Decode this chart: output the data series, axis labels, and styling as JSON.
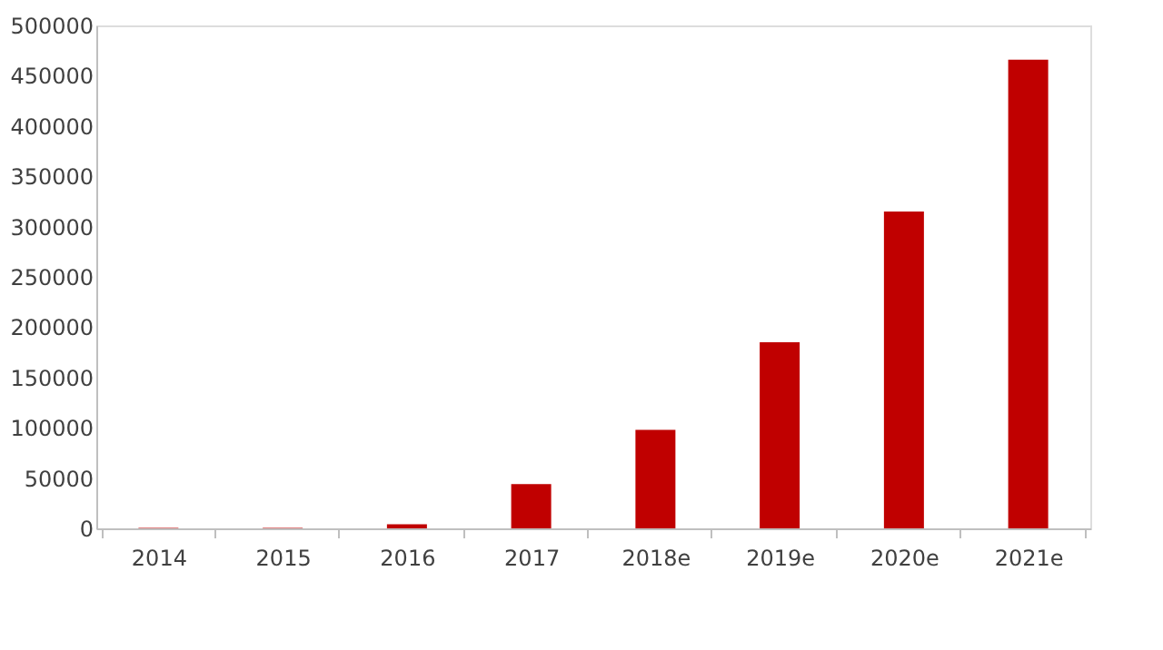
{
  "chart_data": {
    "type": "bar",
    "categories": [
      "2014",
      "2015",
      "2016",
      "2017",
      "2018e",
      "2019e",
      "2020e",
      "2021e"
    ],
    "values": [
      500,
      500,
      4000,
      44000,
      98000,
      185000,
      315000,
      466000
    ],
    "color": "#c00000",
    "ylim": [
      0,
      500000
    ],
    "yticks": [
      0,
      50000,
      100000,
      150000,
      200000,
      250000,
      300000,
      350000,
      400000,
      450000,
      500000
    ],
    "grid": false
  }
}
